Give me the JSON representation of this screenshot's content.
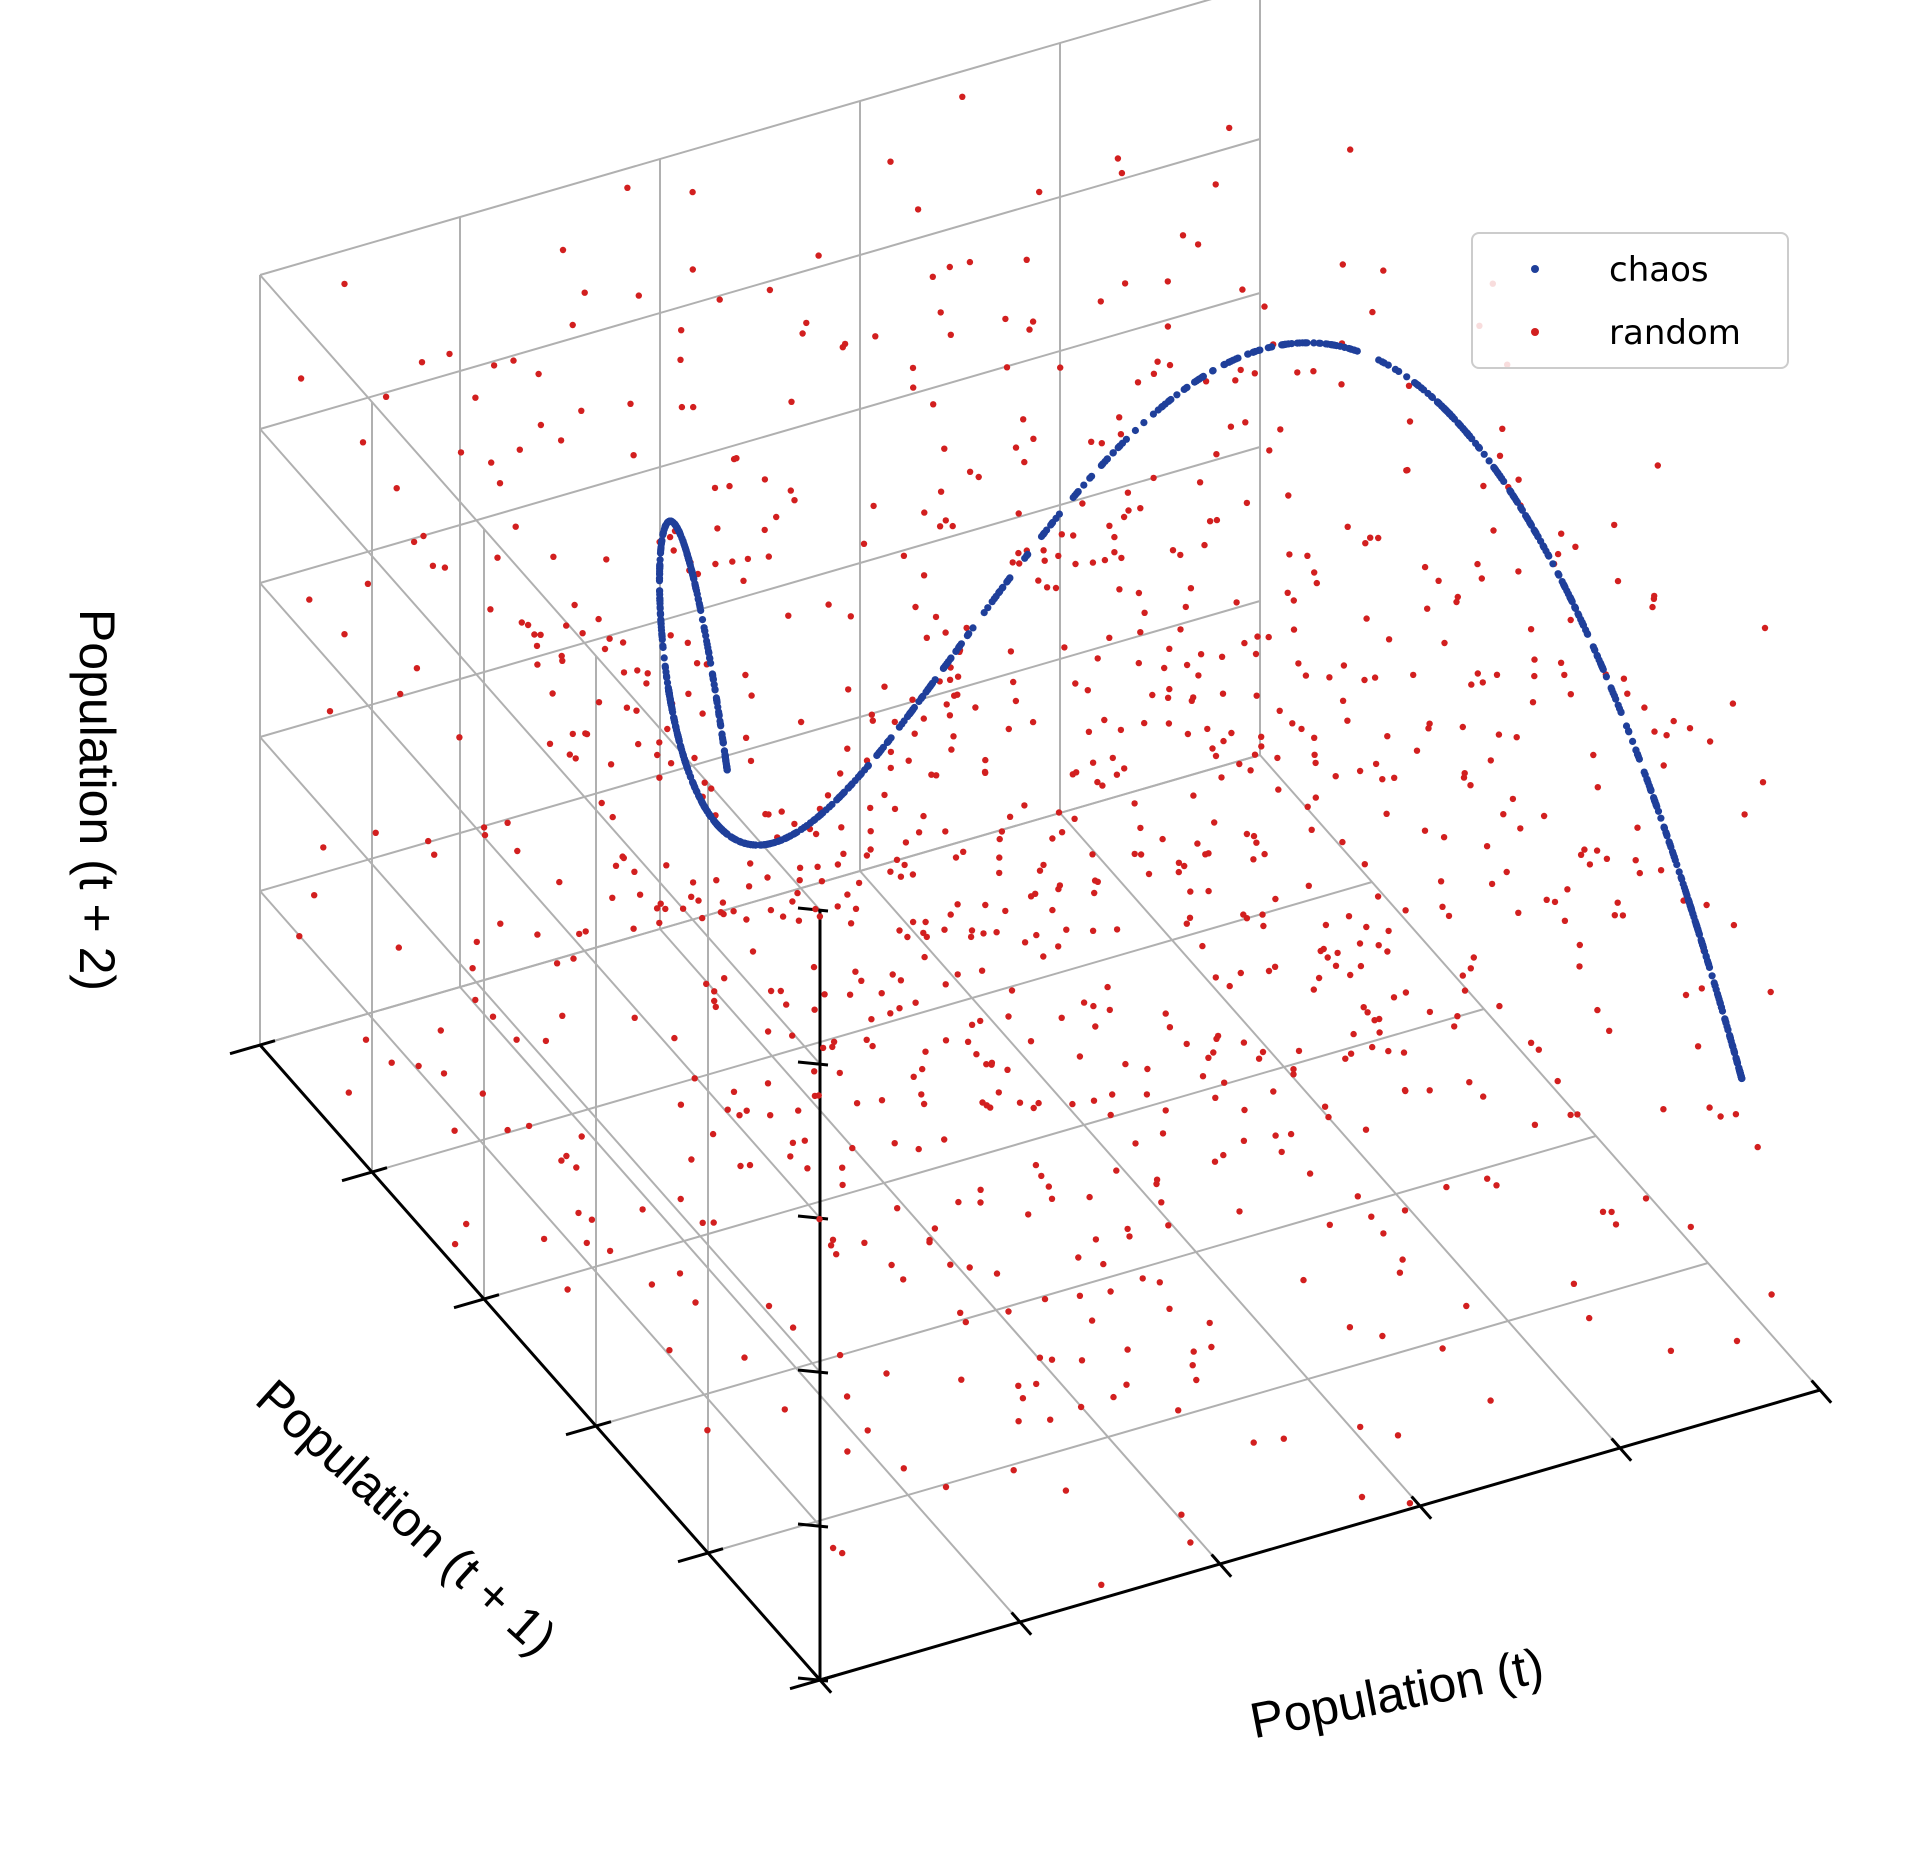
{
  "chart_data": {
    "type": "scatter",
    "projection": "3d",
    "title": "",
    "xlabel": "Population (t)",
    "ylabel": "Population (t + 1)",
    "zlabel": "Population (t + 2)",
    "xlim": [
      0,
      1
    ],
    "ylim": [
      0,
      1
    ],
    "zlim": [
      0,
      1
    ],
    "grid": true,
    "tick_labels_visible": false,
    "legend_position": "top-right",
    "series": [
      {
        "name": "chaos",
        "color": "#1f3f9a",
        "model": "logistic map x(t+1) = 3.9 x(t) (1 - x(t)); points (x(t), x(t+1), x(t+2))",
        "r": 3.9,
        "n_points": 1000
      },
      {
        "name": "random",
        "color": "#d21f1f",
        "model": "independent uniform values on [0, 1] for each coordinate",
        "n_points": 1000
      }
    ]
  }
}
